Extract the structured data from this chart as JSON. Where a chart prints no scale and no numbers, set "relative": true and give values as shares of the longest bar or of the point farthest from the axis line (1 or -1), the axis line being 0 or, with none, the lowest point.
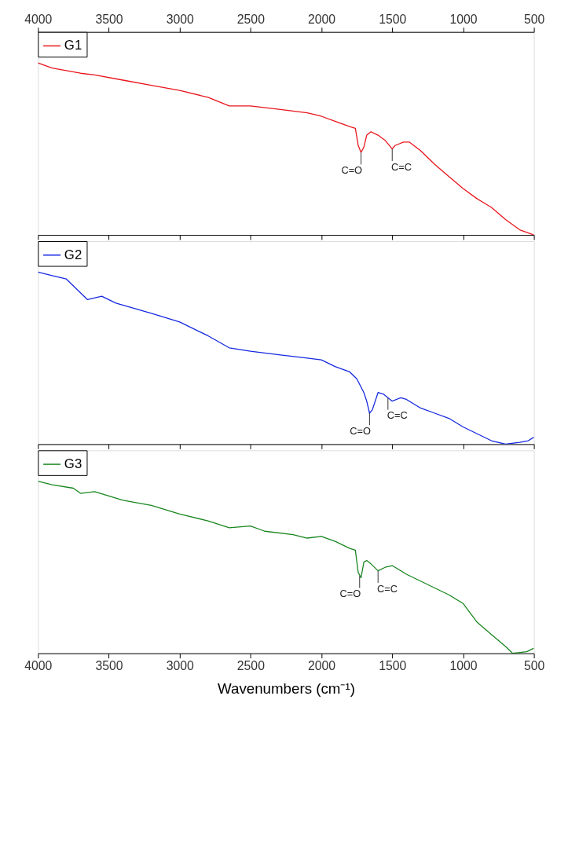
{
  "chart_data": [
    {
      "type": "line",
      "relative": true,
      "legend": "top left",
      "tick_labels": "x",
      "xlim": [
        4000,
        500
      ],
      "xticks": [
        4000,
        3500,
        3000,
        2500,
        2000,
        1500,
        1000,
        500
      ],
      "x": [
        4000,
        3900,
        3700,
        3600,
        3400,
        3200,
        3000,
        2800,
        2650,
        2500,
        2300,
        2200,
        2100,
        2000,
        1900,
        1800,
        1760,
        1740,
        1720,
        1700,
        1680,
        1650,
        1600,
        1550,
        1500,
        1480,
        1420,
        1380,
        1300,
        1200,
        1100,
        1000,
        900,
        800,
        700,
        600,
        500
      ],
      "series": [
        {
          "name": "G1",
          "color": "#e8141b",
          "values": [
            1.0,
            0.97,
            0.94,
            0.93,
            0.9,
            0.87,
            0.84,
            0.8,
            0.75,
            0.75,
            0.73,
            0.72,
            0.71,
            0.69,
            0.66,
            0.63,
            0.62,
            0.52,
            0.48,
            0.51,
            0.58,
            0.6,
            0.58,
            0.55,
            0.5,
            0.52,
            0.54,
            0.54,
            0.49,
            0.41,
            0.34,
            0.27,
            0.21,
            0.16,
            0.09,
            0.03,
            0.0
          ]
        }
      ],
      "annotations": [
        {
          "text": "C=O",
          "x": 1720,
          "y": 0.48
        },
        {
          "text": "C=C",
          "x": 1500,
          "y": 0.5
        }
      ]
    },
    {
      "type": "line",
      "relative": true,
      "legend": "top left",
      "tick_labels": false,
      "xlim": [
        4000,
        500
      ],
      "xticks": [
        {
          "value": 4000,
          "label": null
        },
        {
          "value": 3500,
          "label": null
        },
        {
          "value": 3000,
          "label": null
        },
        {
          "value": 2500,
          "label": null
        },
        {
          "value": 2000,
          "label": null
        },
        {
          "value": 1500,
          "label": null
        },
        {
          "value": 1000,
          "label": null
        },
        {
          "value": 500,
          "label": null
        }
      ],
      "x": [
        4000,
        3900,
        3800,
        3750,
        3650,
        3550,
        3450,
        3200,
        3000,
        2800,
        2650,
        2500,
        2300,
        2100,
        2000,
        1900,
        1800,
        1750,
        1700,
        1680,
        1660,
        1640,
        1600,
        1560,
        1500,
        1440,
        1400,
        1300,
        1200,
        1100,
        1000,
        900,
        800,
        700,
        600,
        540,
        500
      ],
      "series": [
        {
          "name": "G2",
          "color": "#1428e0",
          "values": [
            1.0,
            0.98,
            0.96,
            0.92,
            0.84,
            0.86,
            0.82,
            0.76,
            0.71,
            0.63,
            0.56,
            0.54,
            0.52,
            0.5,
            0.49,
            0.45,
            0.42,
            0.38,
            0.3,
            0.25,
            0.18,
            0.2,
            0.3,
            0.29,
            0.25,
            0.27,
            0.26,
            0.21,
            0.18,
            0.15,
            0.1,
            0.06,
            0.02,
            0.0,
            0.01,
            0.02,
            0.04
          ]
        }
      ],
      "annotations": [
        {
          "text": "C=O",
          "x": 1660,
          "y": 0.18
        },
        {
          "text": "C=C",
          "x": 1530,
          "y": 0.27
        }
      ]
    },
    {
      "type": "line",
      "relative": true,
      "legend": "top left",
      "tick_labels": "x",
      "xlim": [
        4000,
        500
      ],
      "xticks": [
        4000,
        3500,
        3000,
        2500,
        2000,
        1500,
        1000,
        500
      ],
      "xlabel": "Wavenumbers (cm⁻¹)",
      "x": [
        4000,
        3900,
        3750,
        3700,
        3600,
        3400,
        3200,
        3000,
        2800,
        2650,
        2500,
        2400,
        2200,
        2100,
        2000,
        1900,
        1800,
        1760,
        1740,
        1720,
        1700,
        1680,
        1650,
        1600,
        1550,
        1500,
        1400,
        1300,
        1200,
        1100,
        1000,
        900,
        800,
        700,
        650,
        550,
        500
      ],
      "series": [
        {
          "name": "G3",
          "color": "#18861e",
          "values": [
            1.0,
            0.98,
            0.96,
            0.93,
            0.94,
            0.89,
            0.86,
            0.81,
            0.77,
            0.73,
            0.74,
            0.71,
            0.69,
            0.67,
            0.68,
            0.65,
            0.61,
            0.6,
            0.47,
            0.44,
            0.53,
            0.54,
            0.52,
            0.48,
            0.5,
            0.51,
            0.46,
            0.42,
            0.38,
            0.34,
            0.29,
            0.18,
            0.11,
            0.04,
            0.0,
            0.01,
            0.03
          ]
        }
      ],
      "annotations": [
        {
          "text": "C=O",
          "x": 1730,
          "y": 0.45
        },
        {
          "text": "C=C",
          "x": 1600,
          "y": 0.48
        }
      ]
    }
  ]
}
